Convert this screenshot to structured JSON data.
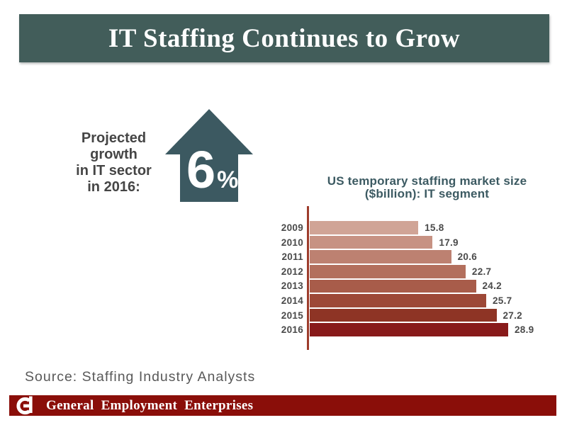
{
  "slide": {
    "title": "IT Staffing Continues to Grow",
    "source_note": "Source: Staffing Industry Analysts",
    "footer": {
      "brand": "General Employment Enterprises",
      "logo": "general-employment-G-logo"
    }
  },
  "growth_callout": {
    "label_lines": [
      "Projected",
      "growth",
      "in IT sector",
      "in 2016:"
    ],
    "value": "6",
    "unit": "%",
    "icon": "up-arrow-icon"
  },
  "chart_data": {
    "type": "bar",
    "orientation": "horizontal",
    "title_lines": [
      "US temporary staffing market size",
      "($billion): IT segment"
    ],
    "title": "US temporary staffing market size ($billion): IT segment",
    "categories": [
      "2009",
      "2010",
      "2011",
      "2012",
      "2013",
      "2014",
      "2015",
      "2016"
    ],
    "values": [
      15.8,
      17.9,
      20.6,
      22.7,
      24.2,
      25.7,
      27.2,
      28.9
    ],
    "xlim": [
      0,
      30
    ],
    "grid": false,
    "legend": "none",
    "value_label_decimals": 1,
    "bar_colors": [
      "#d0a496",
      "#c79283",
      "#bd8171",
      "#b36f5d",
      "#a85c4a",
      "#9d4837",
      "#8e3425",
      "#881a1a"
    ],
    "axis_color": "#9e3c2c",
    "label_color": "#4a4a4a",
    "title_color": "#3c5a62"
  },
  "colors": {
    "header_bg": "#425d5a",
    "arrow": "#3c5961",
    "footer_bg": "#8a0e09",
    "growth_label_text": "#454545",
    "source_text": "#595959"
  }
}
